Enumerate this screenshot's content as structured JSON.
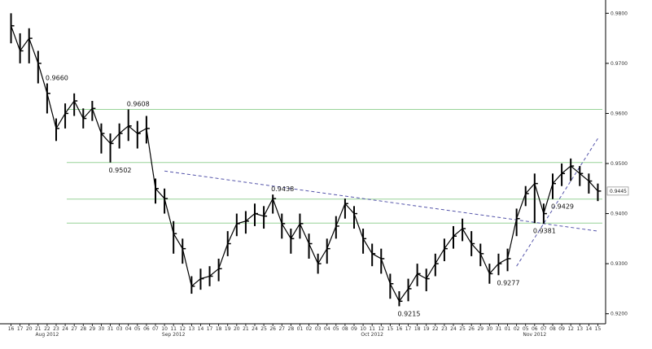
{
  "chart_data": {
    "type": "line",
    "subtype": "ohlc-bars",
    "title": "",
    "xlabel": "",
    "ylabel": "",
    "ylim": [
      0.918,
      0.982
    ],
    "y_ticks": [
      {
        "value": 0.98,
        "label": "0.9800"
      },
      {
        "value": 0.97,
        "label": "0.9700"
      },
      {
        "value": 0.96,
        "label": "0.9600"
      },
      {
        "value": 0.95,
        "label": "0.9500"
      },
      {
        "value": 0.94,
        "label": "0.9400"
      },
      {
        "value": 0.93,
        "label": "0.9300"
      },
      {
        "value": 0.92,
        "label": "0.9200"
      }
    ],
    "x_day_labels": [
      "16",
      "17",
      "20",
      "21",
      "22",
      "23",
      "24",
      "27",
      "28",
      "29",
      "30",
      "31",
      "03",
      "04",
      "05",
      "06",
      "07",
      "10",
      "11",
      "12",
      "13",
      "14",
      "17",
      "18",
      "19",
      "20",
      "21",
      "24",
      "25",
      "26",
      "27",
      "28",
      "01",
      "02",
      "03",
      "04",
      "05",
      "08",
      "09",
      "10",
      "11",
      "12",
      "15",
      "16",
      "17",
      "18",
      "19",
      "22",
      "23",
      "24",
      "25",
      "26",
      "29",
      "30",
      "31",
      "01",
      "02",
      "05",
      "06",
      "07",
      "08",
      "09",
      "12",
      "13",
      "14",
      "15"
    ],
    "x_month_labels": [
      {
        "label": "Aug 2012",
        "at_day": 4
      },
      {
        "label": "Sep 2012",
        "at_day": 18
      },
      {
        "label": "Oct 2012",
        "at_day": 40
      },
      {
        "label": "Nov 2012",
        "at_day": 58
      }
    ],
    "series": [
      {
        "x": [
          0,
          1,
          2,
          3,
          4,
          5,
          6,
          7,
          8,
          9,
          10,
          11,
          12,
          13,
          14,
          15,
          16,
          17,
          18,
          19,
          20,
          21,
          22,
          23,
          24,
          25,
          26,
          27,
          28,
          29,
          30,
          31,
          32,
          33,
          34,
          35,
          36,
          37,
          38,
          39,
          40,
          41,
          42,
          43,
          44,
          45,
          46,
          47,
          48,
          49,
          50,
          51,
          52,
          53,
          54,
          55,
          56,
          57,
          58,
          59,
          60,
          61,
          62,
          63,
          64,
          65
        ],
        "close": [
          0.9775,
          0.9725,
          0.975,
          0.97,
          0.964,
          0.957,
          0.96,
          0.9625,
          0.959,
          0.961,
          0.956,
          0.954,
          0.956,
          0.9575,
          0.956,
          0.957,
          0.945,
          0.943,
          0.936,
          0.933,
          0.9255,
          0.927,
          0.9275,
          0.929,
          0.934,
          0.938,
          0.9385,
          0.94,
          0.9395,
          0.943,
          0.938,
          0.935,
          0.938,
          0.934,
          0.93,
          0.933,
          0.9375,
          0.942,
          0.94,
          0.935,
          0.932,
          0.931,
          0.926,
          0.9225,
          0.925,
          0.928,
          0.927,
          0.93,
          0.933,
          0.9355,
          0.937,
          0.934,
          0.932,
          0.928,
          0.93,
          0.931,
          0.939,
          0.944,
          0.946,
          0.94,
          0.946,
          0.948,
          0.9495,
          0.948,
          0.9465,
          0.9445
        ],
        "high": [
          0.98,
          0.976,
          0.977,
          0.9725,
          0.966,
          0.959,
          0.962,
          0.964,
          0.961,
          0.9625,
          0.958,
          0.956,
          0.958,
          0.9608,
          0.9585,
          0.9595,
          0.947,
          0.945,
          0.9385,
          0.935,
          0.9275,
          0.929,
          0.9295,
          0.931,
          0.9365,
          0.94,
          0.9405,
          0.942,
          0.9415,
          0.9438,
          0.94,
          0.937,
          0.94,
          0.936,
          0.932,
          0.935,
          0.9395,
          0.943,
          0.9415,
          0.937,
          0.934,
          0.933,
          0.928,
          0.9245,
          0.927,
          0.93,
          0.929,
          0.932,
          0.935,
          0.9375,
          0.939,
          0.9365,
          0.934,
          0.93,
          0.932,
          0.933,
          0.941,
          0.9455,
          0.948,
          0.942,
          0.948,
          0.95,
          0.951,
          0.9495,
          0.948,
          0.946
        ],
        "low": [
          0.974,
          0.97,
          0.97,
          0.966,
          0.96,
          0.9545,
          0.957,
          0.9595,
          0.957,
          0.9585,
          0.952,
          0.9502,
          0.953,
          0.9545,
          0.953,
          0.954,
          0.942,
          0.94,
          0.932,
          0.93,
          0.924,
          0.9248,
          0.9255,
          0.9265,
          0.9315,
          0.9355,
          0.936,
          0.9375,
          0.937,
          0.94,
          0.935,
          0.932,
          0.935,
          0.931,
          0.928,
          0.93,
          0.935,
          0.939,
          0.937,
          0.932,
          0.9295,
          0.928,
          0.923,
          0.9215,
          0.9225,
          0.9255,
          0.9245,
          0.9275,
          0.9305,
          0.933,
          0.9345,
          0.9315,
          0.9295,
          0.926,
          0.9277,
          0.9285,
          0.9355,
          0.9415,
          0.9381,
          0.938,
          0.9429,
          0.9455,
          0.9465,
          0.9455,
          0.944,
          0.9425
        ]
      }
    ],
    "hlines": [
      0.9608,
      0.9502,
      0.9429,
      0.9381
    ],
    "trendlines": [
      {
        "from": {
          "x": 17,
          "y": 0.9485
        },
        "to": {
          "x": 65,
          "y": 0.9365
        },
        "style": "dashed"
      },
      {
        "from": {
          "x": 56,
          "y": 0.9295
        },
        "to": {
          "x": 65,
          "y": 0.955
        },
        "style": "dashed"
      }
    ],
    "annotations": [
      {
        "text": "0.9660",
        "x": 4,
        "y": 0.966
      },
      {
        "text": "0.9608",
        "x": 13,
        "y": 0.9608
      },
      {
        "text": "0.9502",
        "x": 11,
        "y": 0.9502
      },
      {
        "text": "0.9438",
        "x": 29,
        "y": 0.9438
      },
      {
        "text": "0.9215",
        "x": 43,
        "y": 0.9215
      },
      {
        "text": "0.9277",
        "x": 54,
        "y": 0.9277
      },
      {
        "text": "0.9381",
        "x": 58,
        "y": 0.9381
      },
      {
        "text": "0.9429",
        "x": 60,
        "y": 0.9429
      }
    ],
    "last_value_label": "0.9445",
    "last_value": 0.9445,
    "grid": false,
    "colors": {
      "bars": "#000000",
      "hline": "#98d498",
      "trendline": "#5555aa",
      "axis": "#000000"
    }
  }
}
